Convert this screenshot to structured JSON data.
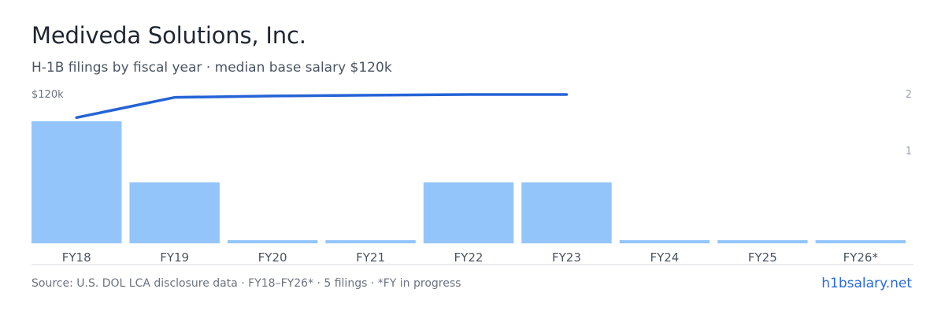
{
  "header": {
    "title": "Mediveda Solutions, Inc.",
    "subtitle": "H-1B filings by fiscal year · median base salary $120k"
  },
  "footer": {
    "source": "Source: U.S. DOL LCA disclosure data · FY18–FY26* · 5 filings · *FY in progress",
    "brand_link": "h1bsalary.net"
  },
  "colors": {
    "bar": "#93c5fb",
    "line": "#2563d6",
    "axis": "#d4d9e0",
    "brand": "#2a6bdc"
  },
  "chart_data": {
    "type": "bar",
    "categories": [
      "FY18",
      "FY19",
      "FY20",
      "FY21",
      "FY22",
      "FY23",
      "FY24",
      "FY25",
      "FY26*"
    ],
    "series": [
      {
        "values": [
          2,
          1,
          0,
          0,
          1,
          1,
          0,
          0,
          0
        ],
        "axis": "right",
        "mark": "bar"
      },
      {
        "values": [
          104,
          118,
          119,
          119.5,
          120,
          120,
          null,
          null,
          null
        ],
        "axis": "left",
        "mark": "line",
        "unit": "USD thousands"
      }
    ],
    "y_left_label": "$120k",
    "y_left_range": [
      0,
      120
    ],
    "y_right_ticks": [
      "2",
      "1"
    ],
    "y_right_range": [
      0,
      2.5
    ],
    "grid": false,
    "legend": "none"
  }
}
